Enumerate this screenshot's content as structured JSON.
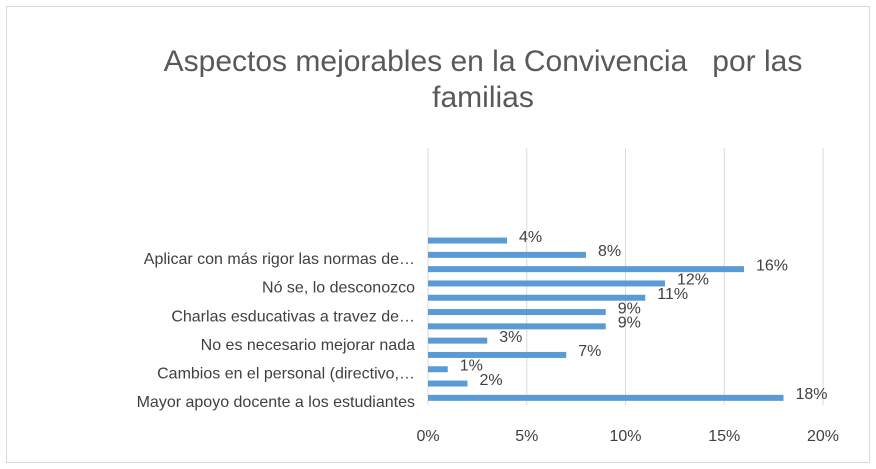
{
  "chart_data": {
    "type": "bar",
    "orientation": "horizontal",
    "title": "Aspectos mejorables en la Convivencia   por las familias",
    "categories": [
      null,
      "Aplicar con más rigor las normas de…",
      null,
      "Nó se, lo desconozco",
      null,
      "Charlas esducativas a travez de…",
      null,
      "No es necesario mejorar nada",
      null,
      "Cambios en el personal (directivo,…",
      null,
      "Mayor apoyo docente a los estudiantes"
    ],
    "values": [
      4,
      8,
      16,
      12,
      11,
      9,
      9,
      3,
      7,
      1,
      2,
      18
    ],
    "value_labels": [
      "4%",
      "8%",
      "16%",
      "12%",
      "11%",
      "9%",
      "9%",
      "3%",
      "7%",
      "1%",
      "2%",
      "18%"
    ],
    "color": "#5b9bd5",
    "xlim": [
      0,
      20
    ],
    "xticks": [
      {
        "value": 0,
        "label": "0%"
      },
      {
        "value": 5,
        "label": "5%"
      },
      {
        "value": 10,
        "label": "10%"
      },
      {
        "value": 15,
        "label": "15%"
      },
      {
        "value": 20,
        "label": "20%"
      }
    ],
    "grid": true
  }
}
